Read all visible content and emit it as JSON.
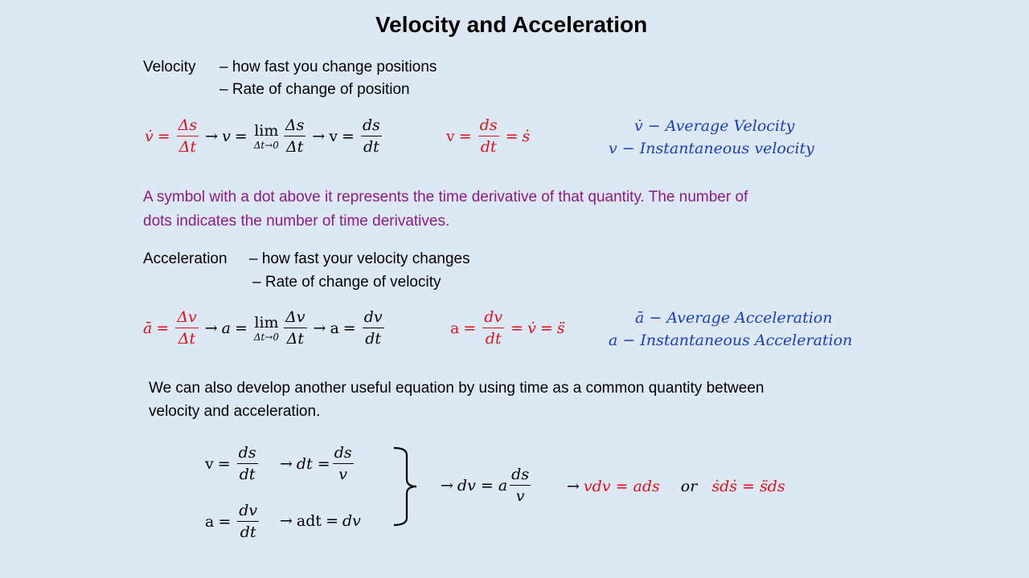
{
  "title": "Velocity and Acceleration",
  "velocity": {
    "term": "Velocity",
    "line1": "– how fast you change positions",
    "line2": "– Rate of change of position"
  },
  "dot_note": {
    "line1": "A symbol with a dot above it represents the time derivative of that quantity.  The number of",
    "line2": "dots indicates the number of time derivatives."
  },
  "acceleration": {
    "term": "Acceleration",
    "line1": "– how fast your velocity changes",
    "line2": "– Rate of change of velocity"
  },
  "develop": {
    "line1": "We can also develop another useful equation by using time as a common quantity between",
    "line2": "velocity and acceleration."
  },
  "eq": {
    "v_avg": "v̇",
    "eq": "=",
    "arrow": "→",
    "delta_s": "Δs",
    "delta_t": "Δt",
    "delta_v": "Δv",
    "lim": "lim",
    "lim_sub": "Δt→0",
    "v_it": "v",
    "v_up": "v",
    "a_up": "a",
    "a_it": "a",
    "a_bar": "ā",
    "ds": "ds",
    "dt": "dt",
    "dv": "dv",
    "s_dot": "ṡ",
    "v_dot": "v̇",
    "s_ddot": "s̈",
    "adt": "adt"
  },
  "defs": {
    "v_avg_label": "v̇  − Average Velocity",
    "v_inst_label": "v  − Instantaneous velocity",
    "a_avg_label": "ā  − Average Acceleration",
    "a_inst_label": "a  − Instantaneous Acceleration"
  },
  "bottom": {
    "dt_eq": "dt =",
    "dv_eq": "dv = a",
    "result1": "vdv = ads",
    "or": "or",
    "result2": "ṡdṡ = s̈ds"
  },
  "colors": {
    "background": "#dce8f4",
    "red": "#e0101a",
    "blue": "#1a3cc8",
    "purple": "#8b1a8b"
  }
}
